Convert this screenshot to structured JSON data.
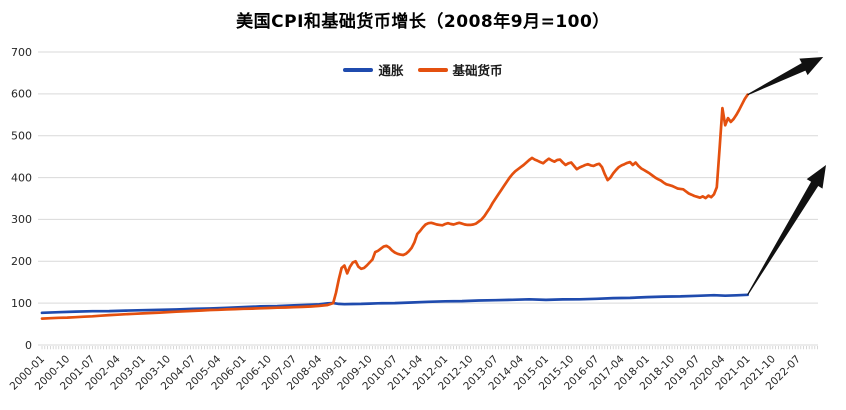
{
  "chart_data": {
    "type": "line",
    "title": "美国CPI和基础货币增长（2008年9月=100）",
    "xlabel": "",
    "ylabel": "",
    "ylim": [
      0,
      700
    ],
    "y_ticks": [
      0,
      100,
      200,
      300,
      400,
      500,
      600,
      700
    ],
    "grid": "horizontal",
    "legend_position": "top-center",
    "x_tick_labels": [
      "2000-01",
      "2000-10",
      "2001-07",
      "2002-04",
      "2003-01",
      "2003-10",
      "2004-07",
      "2005-04",
      "2006-01",
      "2006-10",
      "2007-07",
      "2008-04",
      "2009-01",
      "2009-10",
      "2010-07",
      "2011-04",
      "2012-01",
      "2012-10",
      "2013-07",
      "2014-04",
      "2015-01",
      "2015-10",
      "2016-07",
      "2017-04",
      "2018-01",
      "2018-10",
      "2019-07",
      "2020-04",
      "2021-01",
      "2021-10",
      "2022-07"
    ],
    "style": {
      "background": "#FFFFFF",
      "grid_color": "#D9D9D9",
      "month_tick_color": "#C8C8C8",
      "tick_label_color": "#262626",
      "arrow_color": "#111111"
    },
    "series": [
      {
        "name": "通胀",
        "color": "#1F4BAE",
        "points": [
          [
            "2000-01",
            77
          ],
          [
            "2000-07",
            78.3
          ],
          [
            "2001-01",
            79.8
          ],
          [
            "2001-07",
            80.7
          ],
          [
            "2002-01",
            80.9
          ],
          [
            "2002-07",
            82.1
          ],
          [
            "2003-01",
            83.1
          ],
          [
            "2003-07",
            84.0
          ],
          [
            "2004-01",
            84.7
          ],
          [
            "2004-07",
            86.2
          ],
          [
            "2005-01",
            87.2
          ],
          [
            "2005-07",
            88.6
          ],
          [
            "2006-01",
            90.5
          ],
          [
            "2006-07",
            92.3
          ],
          [
            "2007-01",
            92.9
          ],
          [
            "2007-07",
            94.6
          ],
          [
            "2008-01",
            96.3
          ],
          [
            "2008-04",
            97.0
          ],
          [
            "2008-07",
            99.7
          ],
          [
            "2008-09",
            100
          ],
          [
            "2008-11",
            98.2
          ],
          [
            "2009-01",
            97.5
          ],
          [
            "2009-04",
            97.9
          ],
          [
            "2009-07",
            98.3
          ],
          [
            "2009-10",
            98.8
          ],
          [
            "2010-01",
            99.7
          ],
          [
            "2010-07",
            100.0
          ],
          [
            "2011-01",
            101.5
          ],
          [
            "2011-07",
            103.3
          ],
          [
            "2012-01",
            104.5
          ],
          [
            "2012-07",
            105.0
          ],
          [
            "2013-01",
            106.3
          ],
          [
            "2013-07",
            107.0
          ],
          [
            "2014-01",
            108.0
          ],
          [
            "2014-07",
            109.2
          ],
          [
            "2015-01",
            107.8
          ],
          [
            "2015-07",
            109.0
          ],
          [
            "2016-01",
            109.2
          ],
          [
            "2016-07",
            110.3
          ],
          [
            "2017-01",
            112.0
          ],
          [
            "2017-07",
            112.6
          ],
          [
            "2018-01",
            114.4
          ],
          [
            "2018-07",
            115.6
          ],
          [
            "2019-01",
            116.2
          ],
          [
            "2019-07",
            117.6
          ],
          [
            "2020-01",
            118.9
          ],
          [
            "2020-05",
            117.9
          ],
          [
            "2020-09",
            118.8
          ],
          [
            "2021-01",
            120
          ]
        ]
      },
      {
        "name": "基础货币",
        "color": "#E4500F",
        "points": [
          [
            "2000-01",
            63
          ],
          [
            "2000-04",
            64
          ],
          [
            "2000-07",
            65
          ],
          [
            "2000-10",
            65.5
          ],
          [
            "2001-01",
            66.5
          ],
          [
            "2001-04",
            67.5
          ],
          [
            "2001-07",
            68.5
          ],
          [
            "2001-10",
            70
          ],
          [
            "2002-01",
            71.5
          ],
          [
            "2002-04",
            72.5
          ],
          [
            "2002-07",
            73.5
          ],
          [
            "2002-10",
            74.5
          ],
          [
            "2003-01",
            75.5
          ],
          [
            "2003-04",
            76.5
          ],
          [
            "2003-07",
            77.5
          ],
          [
            "2003-10",
            78.5
          ],
          [
            "2004-01",
            79.5
          ],
          [
            "2004-04",
            80.5
          ],
          [
            "2004-07",
            81.5
          ],
          [
            "2004-10",
            82.5
          ],
          [
            "2005-01",
            83.5
          ],
          [
            "2005-04",
            84.2
          ],
          [
            "2005-07",
            85
          ],
          [
            "2005-10",
            85.7
          ],
          [
            "2006-01",
            86.5
          ],
          [
            "2006-04",
            87
          ],
          [
            "2006-07",
            87.7
          ],
          [
            "2006-10",
            88.4
          ],
          [
            "2007-01",
            89
          ],
          [
            "2007-04",
            89.6
          ],
          [
            "2007-07",
            90.3
          ],
          [
            "2007-10",
            91
          ],
          [
            "2008-01",
            92
          ],
          [
            "2008-04",
            93.5
          ],
          [
            "2008-07",
            95.5
          ],
          [
            "2008-09",
            100
          ],
          [
            "2008-10",
            125
          ],
          [
            "2008-11",
            157
          ],
          [
            "2008-12",
            184
          ],
          [
            "2009-01",
            190
          ],
          [
            "2009-02",
            171
          ],
          [
            "2009-03",
            187
          ],
          [
            "2009-04",
            197
          ],
          [
            "2009-05",
            200
          ],
          [
            "2009-06",
            187
          ],
          [
            "2009-07",
            182
          ],
          [
            "2009-08",
            184
          ],
          [
            "2009-09",
            190
          ],
          [
            "2009-10",
            197
          ],
          [
            "2009-11",
            204
          ],
          [
            "2009-12",
            222
          ],
          [
            "2010-01",
            225
          ],
          [
            "2010-02",
            230
          ],
          [
            "2010-03",
            235
          ],
          [
            "2010-04",
            237
          ],
          [
            "2010-05",
            233
          ],
          [
            "2010-06",
            226
          ],
          [
            "2010-07",
            221
          ],
          [
            "2010-08",
            218
          ],
          [
            "2010-09",
            216
          ],
          [
            "2010-10",
            215
          ],
          [
            "2010-11",
            218
          ],
          [
            "2010-12",
            224
          ],
          [
            "2011-01",
            232
          ],
          [
            "2011-02",
            245
          ],
          [
            "2011-03",
            265
          ],
          [
            "2011-04",
            272
          ],
          [
            "2011-05",
            281
          ],
          [
            "2011-06",
            288
          ],
          [
            "2011-07",
            291
          ],
          [
            "2011-08",
            292
          ],
          [
            "2011-09",
            290
          ],
          [
            "2011-10",
            288
          ],
          [
            "2011-11",
            287
          ],
          [
            "2011-12",
            286
          ],
          [
            "2012-01",
            289
          ],
          [
            "2012-02",
            291
          ],
          [
            "2012-03",
            289
          ],
          [
            "2012-04",
            288
          ],
          [
            "2012-05",
            290
          ],
          [
            "2012-06",
            292
          ],
          [
            "2012-07",
            290
          ],
          [
            "2012-08",
            288
          ],
          [
            "2012-09",
            287
          ],
          [
            "2012-10",
            287
          ],
          [
            "2012-11",
            288
          ],
          [
            "2012-12",
            290
          ],
          [
            "2013-01",
            295
          ],
          [
            "2013-02",
            300
          ],
          [
            "2013-03",
            308
          ],
          [
            "2013-04",
            318
          ],
          [
            "2013-05",
            328
          ],
          [
            "2013-06",
            340
          ],
          [
            "2013-07",
            350
          ],
          [
            "2013-08",
            360
          ],
          [
            "2013-09",
            370
          ],
          [
            "2013-10",
            380
          ],
          [
            "2013-11",
            390
          ],
          [
            "2013-12",
            400
          ],
          [
            "2014-01",
            408
          ],
          [
            "2014-02",
            415
          ],
          [
            "2014-03",
            420
          ],
          [
            "2014-04",
            425
          ],
          [
            "2014-05",
            430
          ],
          [
            "2014-06",
            436
          ],
          [
            "2014-07",
            442
          ],
          [
            "2014-08",
            447
          ],
          [
            "2014-09",
            443
          ],
          [
            "2014-10",
            440
          ],
          [
            "2014-11",
            437
          ],
          [
            "2014-12",
            434
          ],
          [
            "2015-01",
            440
          ],
          [
            "2015-02",
            445
          ],
          [
            "2015-03",
            441
          ],
          [
            "2015-04",
            438
          ],
          [
            "2015-05",
            442
          ],
          [
            "2015-06",
            443
          ],
          [
            "2015-07",
            436
          ],
          [
            "2015-08",
            430
          ],
          [
            "2015-09",
            434
          ],
          [
            "2015-10",
            436
          ],
          [
            "2015-11",
            428
          ],
          [
            "2015-12",
            420
          ],
          [
            "2016-01",
            424
          ],
          [
            "2016-02",
            427
          ],
          [
            "2016-03",
            430
          ],
          [
            "2016-04",
            432
          ],
          [
            "2016-05",
            429
          ],
          [
            "2016-06",
            428
          ],
          [
            "2016-07",
            431
          ],
          [
            "2016-08",
            433
          ],
          [
            "2016-09",
            425
          ],
          [
            "2016-10",
            408
          ],
          [
            "2016-11",
            394
          ],
          [
            "2016-12",
            400
          ],
          [
            "2017-01",
            410
          ],
          [
            "2017-02",
            418
          ],
          [
            "2017-03",
            425
          ],
          [
            "2017-04",
            429
          ],
          [
            "2017-05",
            432
          ],
          [
            "2017-06",
            435
          ],
          [
            "2017-07",
            437
          ],
          [
            "2017-08",
            430
          ],
          [
            "2017-09",
            436
          ],
          [
            "2017-10",
            428
          ],
          [
            "2017-11",
            422
          ],
          [
            "2017-12",
            418
          ],
          [
            "2018-01",
            414
          ],
          [
            "2018-02",
            410
          ],
          [
            "2018-03",
            405
          ],
          [
            "2018-04",
            400
          ],
          [
            "2018-05",
            396
          ],
          [
            "2018-06",
            393
          ],
          [
            "2018-07",
            388
          ],
          [
            "2018-08",
            384
          ],
          [
            "2018-09",
            382
          ],
          [
            "2018-10",
            380
          ],
          [
            "2018-11",
            377
          ],
          [
            "2018-12",
            374
          ],
          [
            "2019-01",
            373
          ],
          [
            "2019-02",
            372
          ],
          [
            "2019-03",
            367
          ],
          [
            "2019-04",
            362
          ],
          [
            "2019-05",
            359
          ],
          [
            "2019-06",
            356
          ],
          [
            "2019-07",
            354
          ],
          [
            "2019-08",
            352
          ],
          [
            "2019-09",
            355
          ],
          [
            "2019-10",
            351
          ],
          [
            "2019-11",
            357
          ],
          [
            "2019-12",
            353
          ],
          [
            "2020-01",
            360
          ],
          [
            "2020-02",
            377
          ],
          [
            "2020-03",
            470
          ],
          [
            "2020-04",
            566
          ],
          [
            "2020-05",
            525
          ],
          [
            "2020-06",
            542
          ],
          [
            "2020-07",
            533
          ],
          [
            "2020-08",
            540
          ],
          [
            "2020-09",
            550
          ],
          [
            "2020-10",
            562
          ],
          [
            "2020-11",
            575
          ],
          [
            "2020-12",
            588
          ],
          [
            "2021-01",
            598
          ]
        ]
      }
    ],
    "annotations": {
      "arrows": [
        {
          "name": "base-money-projection-arrow",
          "color": "#111111",
          "from": [
            "2021-01",
            598
          ],
          "to": [
            "2023-04",
            688
          ]
        },
        {
          "name": "inflation-projection-arrow",
          "color": "#111111",
          "from": [
            "2021-01",
            120
          ],
          "to": [
            "2023-05",
            430
          ]
        }
      ]
    }
  }
}
